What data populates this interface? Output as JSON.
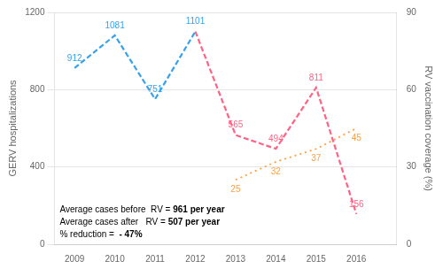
{
  "chart_data": {
    "type": "line",
    "x": [
      2009,
      2010,
      2011,
      2012,
      2013,
      2014,
      2015,
      2016
    ],
    "xlim": [
      2008.5,
      2017.0
    ],
    "xticks": [
      2009,
      2010,
      2011,
      2012,
      2013,
      2014,
      2015,
      2016
    ],
    "ylabel": "GERV hospitalizations",
    "y2label": "RV vaccination coverage (%)",
    "ylim": [
      0,
      1200
    ],
    "yticks": [
      0,
      400,
      800,
      1200
    ],
    "y2lim": [
      0,
      90
    ],
    "y2ticks": [
      0,
      30,
      60,
      90
    ],
    "grid": "y",
    "data_labels": true,
    "series": [
      {
        "values": [
          912,
          1081,
          751,
          1101,
          null,
          null,
          null,
          null
        ],
        "line_style": "dashed"
      },
      {
        "values": [
          null,
          null,
          null,
          1101,
          565,
          494,
          811,
          156
        ],
        "value_labels": [
          null,
          null,
          null,
          null,
          "565",
          "494",
          "811",
          "156"
        ],
        "line_style": "dashed"
      },
      {
        "values": [
          null,
          null,
          null,
          null,
          25,
          32,
          37,
          45
        ],
        "axis": "y2",
        "line_style": "dotted"
      }
    ],
    "annotations": [
      {
        "text": "Average cases before  RV = ",
        "bold": "961 per year"
      },
      {
        "text": "Average cases after   RV = ",
        "bold": "507 per year"
      },
      {
        "text": "% reduction =  ",
        "bold": "- 47%"
      }
    ]
  }
}
